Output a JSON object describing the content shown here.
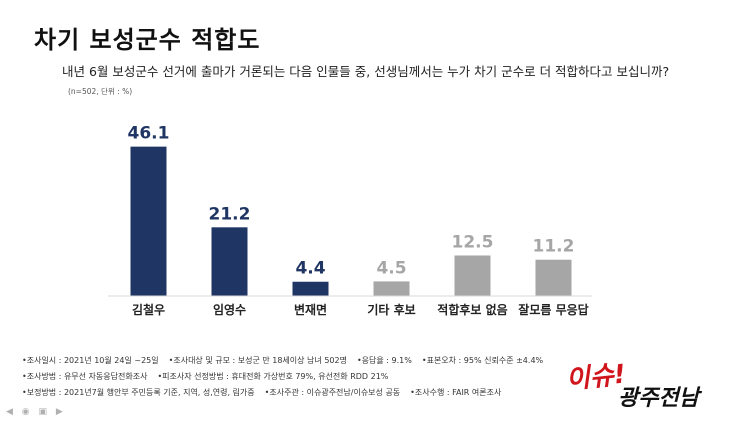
{
  "header": {
    "title": "차기 보성군수 적합도",
    "question": "내년 6월 보성군수 선거에 출마가 거론되는 다음 인물들 중, 선생님께서는 누가 차기 군수로 더 적합하다고 보십니까?",
    "note": "(n=502, 단위 : %)"
  },
  "chart_data": {
    "type": "bar",
    "title": "차기 보성군수 적합도",
    "categories": [
      "김철우",
      "임영수",
      "변재면",
      "기타 후보",
      "적합후보 없음",
      "잘모름 무응답"
    ],
    "values": [
      46.1,
      21.2,
      4.4,
      4.5,
      12.5,
      11.2
    ],
    "value_labels": [
      "46.1",
      "21.2",
      "4.4",
      "4.5",
      "12.5",
      "11.2"
    ],
    "unit": "%",
    "ylim": [
      0,
      50
    ],
    "grid": false,
    "legend": "none",
    "colors": [
      "#1f3563",
      "#1f3563",
      "#1f3563",
      "#a6a6a6",
      "#a6a6a6",
      "#a6a6a6"
    ]
  },
  "footer": {
    "rows": [
      [
        "•조사일시 : 2021년 10월 24일 ~25일",
        "•조사대상 및 규모 : 보성군 만 18세이상  남녀  502명",
        "•응답율 :  9.1%",
        "•표본오차 : 95% 신뢰수준 ±4.4%"
      ],
      [
        "•조사방법 : 유무선 자동응답전화조사",
        "•피조사자 선정방법 : 휴대전화 가상번호 79%, 유선전화 RDD  21%"
      ],
      [
        "•보정방법 : 2021년7월  행안부 주민등록 기준,  지역, 성,연령, 림가중",
        "•조사주관 : 이슈광주전남/이슈보성 공동",
        "•조사수행 : FAIR 여론조사"
      ]
    ]
  },
  "logo": {
    "line1": "이슈!",
    "line2": "광주전남"
  },
  "colors": {
    "accent": "#1f3563",
    "secondary": "#a6a6a6",
    "logo_red": "#d0161c"
  }
}
